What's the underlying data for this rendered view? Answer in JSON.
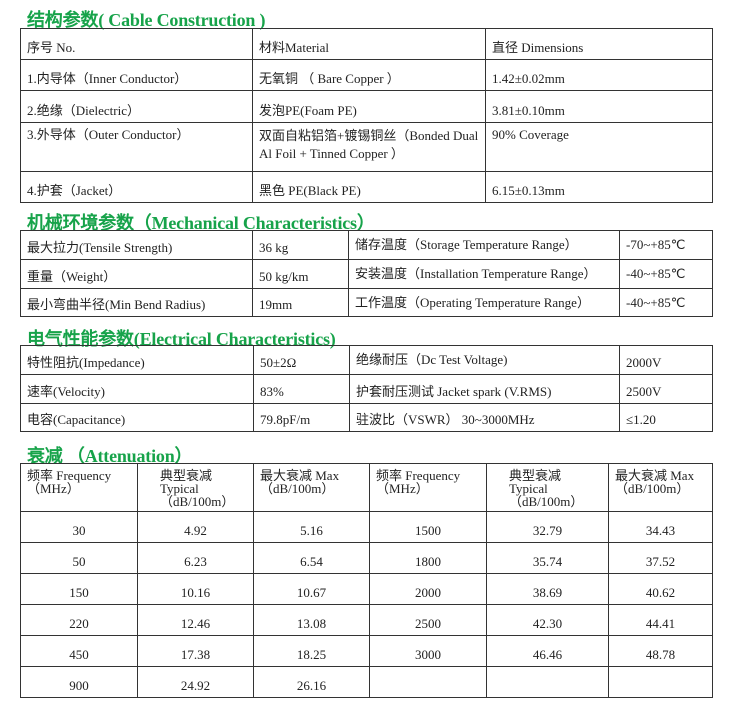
{
  "colors": {
    "title": "#17a34a",
    "border": "#333333"
  },
  "construction": {
    "title": "结构参数( Cable Construction )",
    "headers": [
      "序号 No.",
      "材料Material",
      "直径 Dimensions"
    ],
    "rows": [
      [
        "1.内导体（Inner Conductor）",
        "无氧铜 （ Bare Copper ）",
        "1.42±0.02mm"
      ],
      [
        "2.绝缘（Dielectric）",
        "发泡PE(Foam PE)",
        "3.81±0.10mm"
      ],
      [
        "3.外导体（Outer Conductor）",
        "双面自粘铝箔+镀锡铜丝（Bonded Dual Al Foil + Tinned Copper ）",
        "90% Coverage"
      ],
      [
        "4.护套（Jacket）",
        "黑色 PE(Black PE)",
        "6.15±0.13mm"
      ]
    ]
  },
  "mechanical": {
    "title": "机械环境参数（Mechanical Characteristics）",
    "rows": [
      [
        "最大拉力(Tensile Strength)",
        "36 kg",
        "储存温度（Storage Temperature Range）",
        "-70~+85℃"
      ],
      [
        "重量（Weight）",
        "50 kg/km",
        "安装温度（Installation Temperature Range）",
        "-40~+85℃"
      ],
      [
        "最小弯曲半径(Min Bend Radius)",
        "19mm",
        "工作温度（Operating Temperature Range）",
        "-40~+85℃"
      ]
    ]
  },
  "electrical": {
    "title": "电气性能参数(Electrical Characteristics)",
    "rows": [
      [
        "特性阻抗(Impedance)",
        "50±2Ω",
        "绝缘耐压（Dc Test Voltage)",
        "2000V"
      ],
      [
        "速率(Velocity)",
        "83%",
        "护套耐压测试 Jacket spark (V.RMS)",
        "2500V"
      ],
      [
        "电容(Capacitance)",
        "79.8pF/m",
        "驻波比（VSWR） 30~3000MHz",
        "≤1.20"
      ]
    ]
  },
  "attenuation": {
    "title": "衰减 （Attenuation）",
    "headers": [
      [
        "频率 Frequency",
        "（MHz）",
        ""
      ],
      [
        "典型衰减",
        "Typical",
        "（dB/100m）"
      ],
      [
        "最大衰减 Max",
        "（dB/100m）",
        ""
      ],
      [
        "频率 Frequency",
        "（MHz）",
        ""
      ],
      [
        "典型衰减",
        "Typical",
        "（dB/100m）"
      ],
      [
        "最大衰减 Max",
        "（dB/100m）",
        ""
      ]
    ],
    "rows": [
      [
        "30",
        "4.92",
        "5.16",
        "1500",
        "32.79",
        "34.43"
      ],
      [
        "50",
        "6.23",
        "6.54",
        "1800",
        "35.74",
        "37.52"
      ],
      [
        "150",
        "10.16",
        "10.67",
        "2000",
        "38.69",
        "40.62"
      ],
      [
        "220",
        "12.46",
        "13.08",
        "2500",
        "42.30",
        "44.41"
      ],
      [
        "450",
        "17.38",
        "18.25",
        "3000",
        "46.46",
        "48.78"
      ],
      [
        "900",
        "24.92",
        "26.16",
        "",
        "",
        ""
      ]
    ]
  }
}
